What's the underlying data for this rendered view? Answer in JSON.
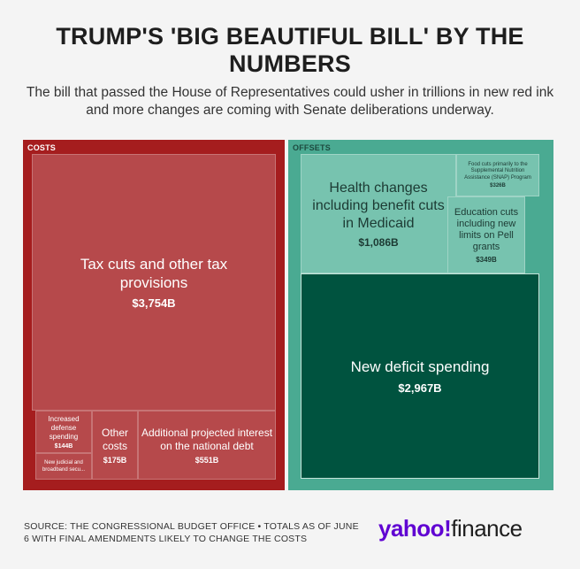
{
  "header": {
    "title": "TRUMP'S 'BIG BEAUTIFUL BILL' BY THE NUMBERS",
    "subtitle": "The bill that passed the House of Representatives could usher in trillions in new red ink and more changes are coming with Senate deliberations underway."
  },
  "chart_data": {
    "type": "treemap",
    "title": "TRUMP'S 'BIG BEAUTIFUL BILL' BY THE NUMBERS",
    "groups": [
      {
        "name": "COSTS",
        "color": "#a51d1e",
        "items": [
          {
            "label": "Tax cuts and other tax provisions",
            "value_label": "$3,754B",
            "value": 3754
          },
          {
            "label": "Additional projected interest on the national debt",
            "value_label": "$551B",
            "value": 551
          },
          {
            "label": "Other costs",
            "value_label": "$175B",
            "value": 175
          },
          {
            "label": "Increased defense spending",
            "value_label": "$144B",
            "value": 144
          },
          {
            "label": "New judicial and broadband secu...",
            "value_label": "",
            "value": null
          }
        ]
      },
      {
        "name": "OFFSETS",
        "color": "#4aaa92",
        "items": [
          {
            "label": "New deficit spending",
            "value_label": "$2,967B",
            "value": 2967
          },
          {
            "label": "Health changes including benefit cuts in Medicaid",
            "value_label": "$1,086B",
            "value": 1086
          },
          {
            "label": "Education cuts including new limits on Pell grants",
            "value_label": "$349B",
            "value": 349
          },
          {
            "label": "Food cuts primarily to the Supplemental Nutrition Assistance (SNAP) Program",
            "value_label": "$326B",
            "value": 326
          }
        ]
      }
    ]
  },
  "footer": {
    "source": "SOURCE: THE CONGRESSIONAL BUDGET OFFICE • TOTALS AS OF JUNE 6 WITH FINAL AMENDMENTS LIKELY TO CHANGE THE COSTS",
    "logo_yahoo": "yahoo!",
    "logo_finance": "finance"
  },
  "colors": {
    "costs_background": "#a51d1e",
    "costs_tile": "#b6494b",
    "offsets_background": "#4aaa92",
    "offsets_tile": "#77c3af",
    "new_deficit_tile": "#00533f",
    "brand_purple": "#6001d2"
  }
}
